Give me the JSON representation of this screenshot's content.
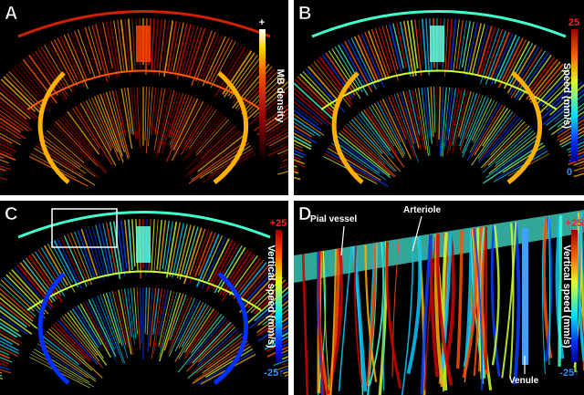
{
  "panels": [
    {
      "letter": "A",
      "colorbar": {
        "label": "MB density",
        "top": "+"
      }
    },
    {
      "letter": "B",
      "colorbar": {
        "label": "Speed (mm/s)",
        "top": "25",
        "bottom": "0"
      }
    },
    {
      "letter": "C",
      "colorbar": {
        "label": "Vertical speed (mm/s)",
        "top": "+25",
        "bottom": "-25↑"
      }
    },
    {
      "letter": "D",
      "colorbar": {
        "label": "Vertical speed (mm/s)",
        "top": "+25",
        "bottom": "-25↑"
      },
      "annotations": [
        "Pial vessel",
        "Arteriole",
        "Venule"
      ]
    }
  ]
}
